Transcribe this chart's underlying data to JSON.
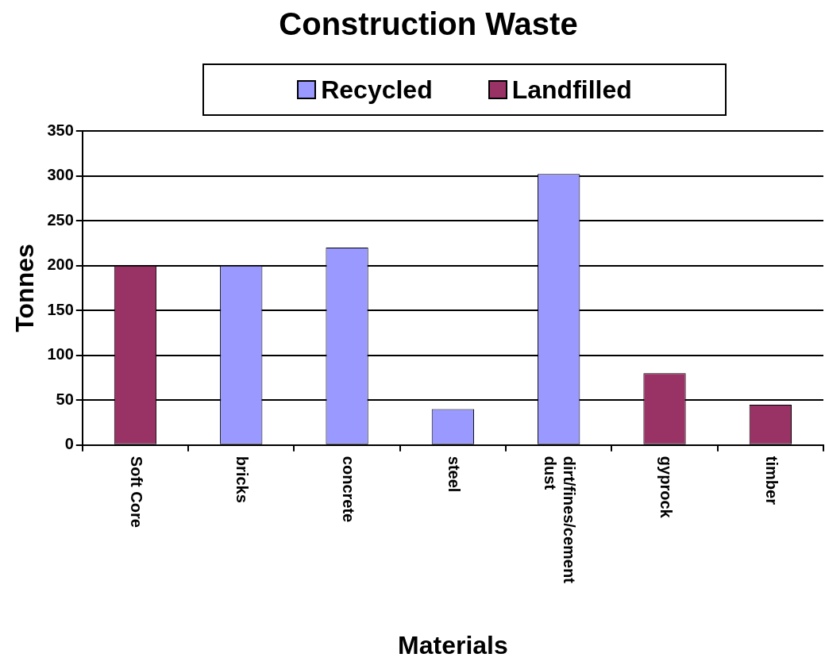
{
  "chart_data": {
    "type": "bar",
    "title": "Construction Waste",
    "xlabel": "Materials",
    "ylabel": "Tonnes",
    "categories": [
      "Soft Core",
      "bricks",
      "concrete",
      "steel",
      "dirt/fines/cement dust",
      "gyprock",
      "timber"
    ],
    "series": [
      {
        "name": "Recycled",
        "color": "#9999ff",
        "values": [
          null,
          200,
          220,
          40,
          302,
          null,
          null
        ]
      },
      {
        "name": "Landfilled",
        "color": "#993366",
        "values": [
          200,
          null,
          null,
          null,
          null,
          80,
          45
        ]
      }
    ],
    "stacked": true,
    "ylim": [
      0,
      350
    ],
    "yticks": [
      0,
      50,
      100,
      150,
      200,
      250,
      300,
      350
    ],
    "grid": "y",
    "legend": "top"
  }
}
